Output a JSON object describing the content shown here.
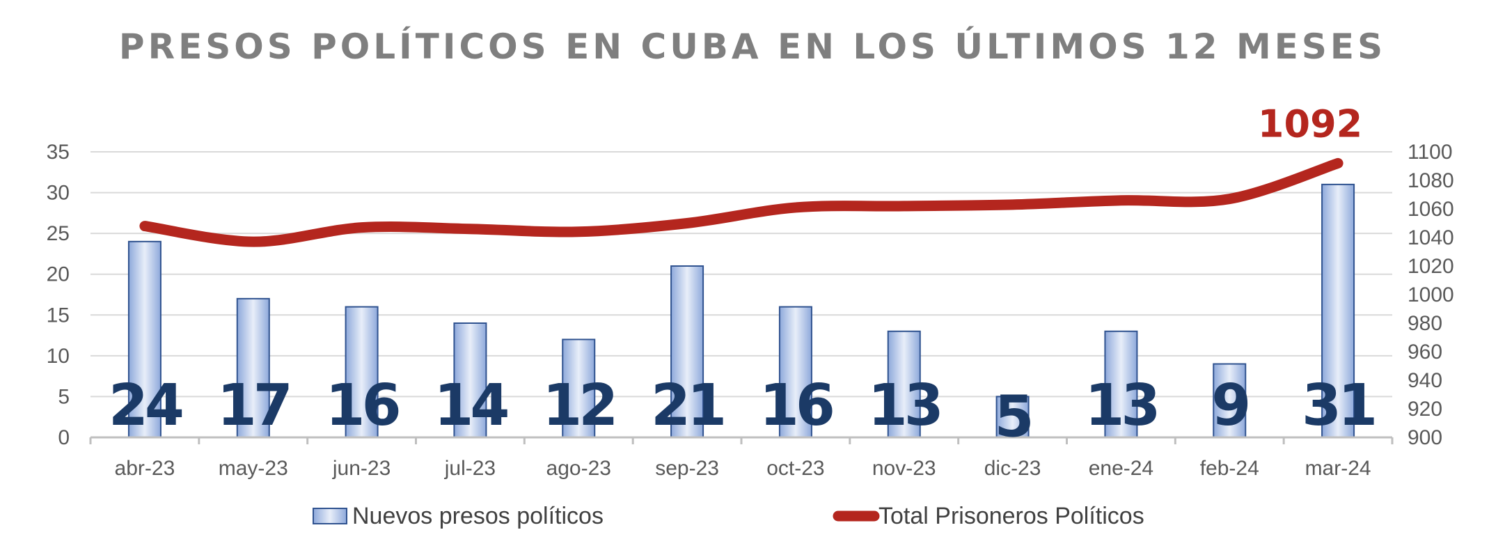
{
  "chart_data": {
    "type": "bar",
    "title": "PRESOS POLÍTICOS EN CUBA EN LOS ÚLTIMOS 12 MESES",
    "categories": [
      "abr-23",
      "may-23",
      "jun-23",
      "jul-23",
      "ago-23",
      "sep-23",
      "oct-23",
      "nov-23",
      "dic-23",
      "ene-24",
      "feb-24",
      "mar-24"
    ],
    "series": [
      {
        "name": "Nuevos presos políticos",
        "type": "bar",
        "axis": "left",
        "values": [
          24,
          17,
          16,
          14,
          12,
          21,
          16,
          13,
          5,
          13,
          9,
          31
        ],
        "color": "#8ea9db"
      },
      {
        "name": "Total Prisoneros Políticos",
        "type": "line",
        "axis": "right",
        "values": [
          1048,
          1037,
          1047,
          1046,
          1044,
          1050,
          1061,
          1062,
          1063,
          1066,
          1067,
          1092
        ],
        "color": "#b4261e"
      }
    ],
    "ylim_left": [
      0,
      35
    ],
    "yticks_left": [
      "0",
      "5",
      "10",
      "15",
      "20",
      "25",
      "30",
      "35"
    ],
    "ylim_right": [
      900,
      1100
    ],
    "yticks_right": [
      "900",
      "920",
      "940",
      "960",
      "980",
      "1000",
      "1020",
      "1040",
      "1060",
      "1080",
      "1100"
    ],
    "peak_label": "1092",
    "grid": true,
    "legend_position": "bottom"
  }
}
